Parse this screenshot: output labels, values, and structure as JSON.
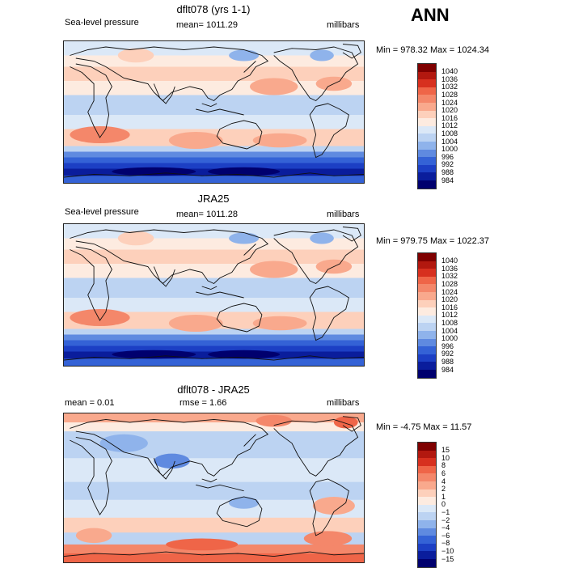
{
  "season": "ANN",
  "panels": [
    {
      "title": "dflt078 (yrs 1-1)",
      "left_label": "Sea-level pressure",
      "center_label": "mean= 1011.29",
      "units": "millibars",
      "minmax": "Min = 978.32 Max = 1024.34",
      "legend": [
        "1040",
        "1036",
        "1032",
        "1028",
        "1024",
        "1020",
        "1016",
        "1012",
        "1008",
        "1004",
        "1000",
        "996",
        "992",
        "988",
        "984"
      ],
      "colors": [
        "#7f0000",
        "#b2180f",
        "#d7301f",
        "#ef6548",
        "#f4876a",
        "#f9a98d",
        "#fdd0bb",
        "#fdebe0",
        "#dbe8f7",
        "#bcd3f2",
        "#8fb3eb",
        "#5f8ae0",
        "#3462d6",
        "#1c3fc4",
        "#0a1d9c",
        "#00006e"
      ]
    },
    {
      "title": "JRA25",
      "left_label": "Sea-level pressure",
      "center_label": "mean= 1011.28",
      "units": "millibars",
      "minmax": "Min = 979.75 Max = 1022.37",
      "legend": [
        "1040",
        "1036",
        "1032",
        "1028",
        "1024",
        "1020",
        "1016",
        "1012",
        "1008",
        "1004",
        "1000",
        "996",
        "992",
        "988",
        "984"
      ],
      "colors": [
        "#7f0000",
        "#b2180f",
        "#d7301f",
        "#ef6548",
        "#f4876a",
        "#f9a98d",
        "#fdd0bb",
        "#fdebe0",
        "#dbe8f7",
        "#bcd3f2",
        "#8fb3eb",
        "#5f8ae0",
        "#3462d6",
        "#1c3fc4",
        "#0a1d9c",
        "#00006e"
      ]
    },
    {
      "title": "dflt078 - JRA25",
      "left_label": "mean =    0.01",
      "center_label": "rmse =    1.66",
      "units": "millibars",
      "minmax": "Min =  -4.75 Max =  11.57",
      "legend": [
        "15",
        "10",
        "8",
        "6",
        "4",
        "2",
        "1",
        "0",
        "−1",
        "−2",
        "−4",
        "−6",
        "−8",
        "−10",
        "−15"
      ],
      "colors": [
        "#7f0000",
        "#b2180f",
        "#d7301f",
        "#ef6548",
        "#f4876a",
        "#f9a98d",
        "#fdd0bb",
        "#fdebe0",
        "#dbe8f7",
        "#bcd3f2",
        "#8fb3eb",
        "#5f8ae0",
        "#3462d6",
        "#1c3fc4",
        "#0a1d9c",
        "#00006e"
      ]
    }
  ]
}
